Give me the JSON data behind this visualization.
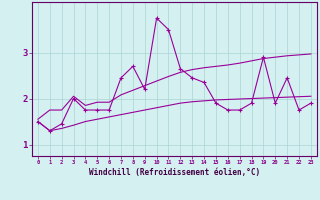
{
  "xlabel": "Windchill (Refroidissement éolien,°C)",
  "x_data": [
    0,
    1,
    2,
    3,
    4,
    5,
    6,
    7,
    8,
    9,
    10,
    11,
    12,
    13,
    14,
    15,
    16,
    17,
    18,
    19,
    20,
    21,
    22,
    23
  ],
  "main_line": [
    1.5,
    1.3,
    1.45,
    2.0,
    1.75,
    1.75,
    1.75,
    2.45,
    2.7,
    2.2,
    3.75,
    3.5,
    2.65,
    2.45,
    2.35,
    1.9,
    1.75,
    1.75,
    1.9,
    2.9,
    1.9,
    2.45,
    1.75,
    1.9
  ],
  "upper_line": [
    1.55,
    1.75,
    1.75,
    2.05,
    1.85,
    1.92,
    1.92,
    2.08,
    2.18,
    2.28,
    2.38,
    2.48,
    2.57,
    2.63,
    2.67,
    2.7,
    2.73,
    2.77,
    2.82,
    2.87,
    2.9,
    2.93,
    2.95,
    2.97
  ],
  "lower_line": [
    1.5,
    1.3,
    1.35,
    1.42,
    1.5,
    1.55,
    1.6,
    1.65,
    1.7,
    1.75,
    1.8,
    1.85,
    1.9,
    1.93,
    1.95,
    1.97,
    1.98,
    1.99,
    2.0,
    2.01,
    2.02,
    2.03,
    2.04,
    2.05
  ],
  "line_color": "#990099",
  "bg_color": "#d4f0f0",
  "grid_color": "#aad4d4",
  "tick_color": "#880088",
  "label_color": "#440044",
  "ylim": [
    0.75,
    4.1
  ],
  "xlim": [
    -0.5,
    23.5
  ],
  "yticks": [
    1,
    2,
    3
  ],
  "ytick_labels": [
    "1",
    "2",
    "3"
  ]
}
